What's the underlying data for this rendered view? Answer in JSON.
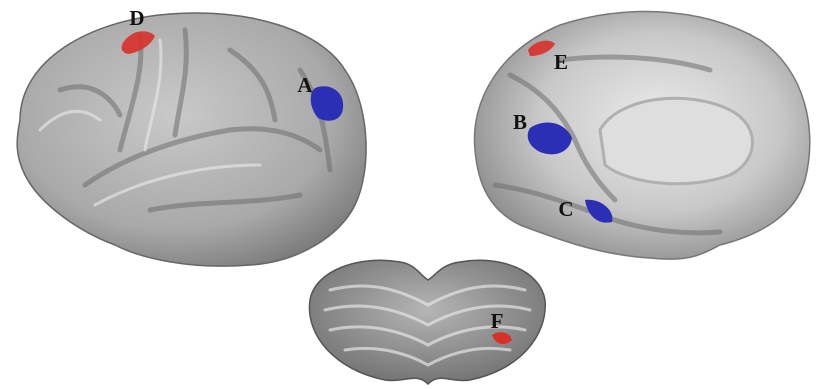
{
  "labels": {
    "a": "A",
    "b": "B",
    "c": "C",
    "d": "D",
    "e": "E",
    "f": "F"
  }
}
